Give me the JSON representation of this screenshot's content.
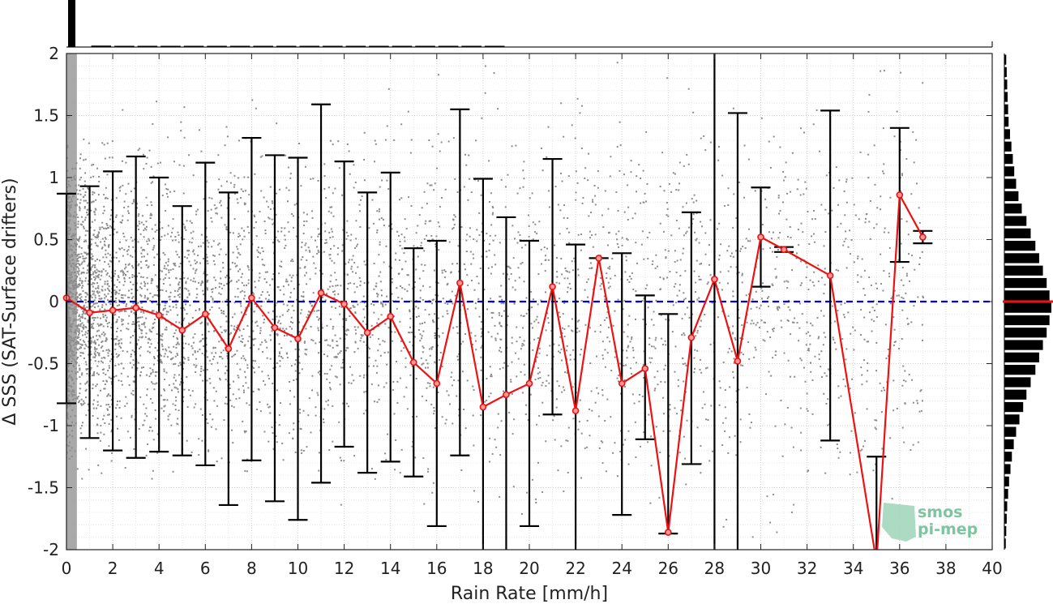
{
  "chart_data": {
    "type": "scatter",
    "xlabel": "Rain Rate [mm/h]",
    "ylabel": "Δ SSS (SAT-Surface drifters)",
    "xlim": [
      0,
      40
    ],
    "ylim": [
      -2,
      2
    ],
    "xticks": [
      "0",
      "2",
      "4",
      "6",
      "8",
      "10",
      "12",
      "14",
      "16",
      "18",
      "20",
      "22",
      "24",
      "26",
      "28",
      "30",
      "32",
      "34",
      "36",
      "38",
      "40"
    ],
    "yticks": [
      "-2",
      "-1.5",
      "-1",
      "-0.5",
      "0",
      "0.5",
      "1",
      "1.5",
      "2"
    ],
    "grid": true,
    "reference_line": {
      "y": 0,
      "style": "dashed",
      "color": "#0000dd"
    },
    "series": [
      {
        "color": "#ee1111",
        "x": [
          0,
          1,
          2,
          3,
          4,
          5,
          6,
          7,
          8,
          9,
          10,
          11,
          12,
          13,
          14,
          15,
          16,
          17,
          18,
          19,
          20,
          21,
          22,
          23,
          24,
          25,
          26,
          27,
          28,
          29,
          30,
          31,
          33,
          35,
          36,
          37
        ],
        "mean": [
          0.03,
          -0.09,
          -0.07,
          -0.05,
          -0.11,
          -0.23,
          -0.1,
          -0.38,
          0.03,
          -0.21,
          -0.3,
          0.07,
          -0.02,
          -0.25,
          -0.12,
          -0.49,
          -0.66,
          0.15,
          -0.85,
          -0.75,
          -0.66,
          0.12,
          -0.88,
          0.35,
          -0.66,
          -0.54,
          -1.86,
          -0.29,
          0.18,
          -0.48,
          0.52,
          0.42,
          0.21,
          -2.1,
          0.86,
          0.52
        ],
        "lower": [
          -0.82,
          -1.1,
          -1.2,
          -1.26,
          -1.21,
          -1.24,
          -1.32,
          -1.64,
          -1.28,
          -1.61,
          -1.76,
          -1.46,
          -1.17,
          -1.38,
          -1.29,
          -1.41,
          -1.81,
          -1.24,
          -2.7,
          -2.2,
          -1.81,
          -0.91,
          -2.2,
          0.35,
          -1.72,
          -1.11,
          -1.87,
          -1.31,
          -2.5,
          -2.4,
          0.12,
          0.4,
          -1.12,
          -2.2,
          0.32,
          0.47
        ],
        "upper": [
          0.87,
          0.93,
          1.05,
          1.17,
          1.0,
          0.77,
          1.12,
          0.88,
          1.32,
          1.18,
          1.16,
          1.59,
          1.13,
          0.88,
          1.04,
          0.43,
          0.49,
          1.55,
          0.99,
          0.68,
          0.49,
          1.15,
          0.46,
          0.35,
          0.39,
          0.05,
          -0.1,
          0.72,
          2.3,
          1.52,
          0.92,
          0.44,
          1.54,
          -1.25,
          1.4,
          0.57
        ]
      }
    ],
    "scatter_cloud": {
      "color": "#8c8c8c",
      "description_values_x_range": [
        0,
        37
      ]
    },
    "top_histogram": [
      1.0,
      0.03,
      0.02,
      0.015,
      0.012,
      0.01,
      0.009,
      0.008,
      0.007,
      0.006,
      0.005,
      0.005,
      0.004,
      0.004,
      0.003,
      0.003,
      0.003,
      0.002,
      0.002
    ],
    "right_histogram": {
      "bins_y": [
        1.95,
        1.85,
        1.75,
        1.65,
        1.55,
        1.45,
        1.35,
        1.25,
        1.15,
        1.05,
        0.95,
        0.85,
        0.75,
        0.65,
        0.55,
        0.45,
        0.35,
        0.25,
        0.15,
        0.05,
        -0.05,
        -0.15,
        -0.25,
        -0.35,
        -0.45,
        -0.55,
        -0.65,
        -0.75,
        -0.85,
        -0.95,
        -1.05,
        -1.15,
        -1.25,
        -1.35,
        -1.45,
        -1.55,
        -1.65,
        -1.75,
        -1.85,
        -1.95
      ],
      "counts": [
        0.04,
        0.05,
        0.06,
        0.07,
        0.08,
        0.09,
        0.12,
        0.15,
        0.18,
        0.21,
        0.25,
        0.3,
        0.37,
        0.47,
        0.56,
        0.66,
        0.74,
        0.82,
        0.9,
        0.96,
        1.0,
        0.96,
        0.9,
        0.82,
        0.74,
        0.66,
        0.56,
        0.47,
        0.4,
        0.32,
        0.25,
        0.2,
        0.16,
        0.13,
        0.1,
        0.08,
        0.06,
        0.05,
        0.04,
        0.03
      ],
      "median_marker": {
        "y": 0.0,
        "color": "#ee1111"
      }
    },
    "watermark": {
      "line1": "smos",
      "line2": "pi-mep",
      "color": "#7fc4a0"
    }
  }
}
